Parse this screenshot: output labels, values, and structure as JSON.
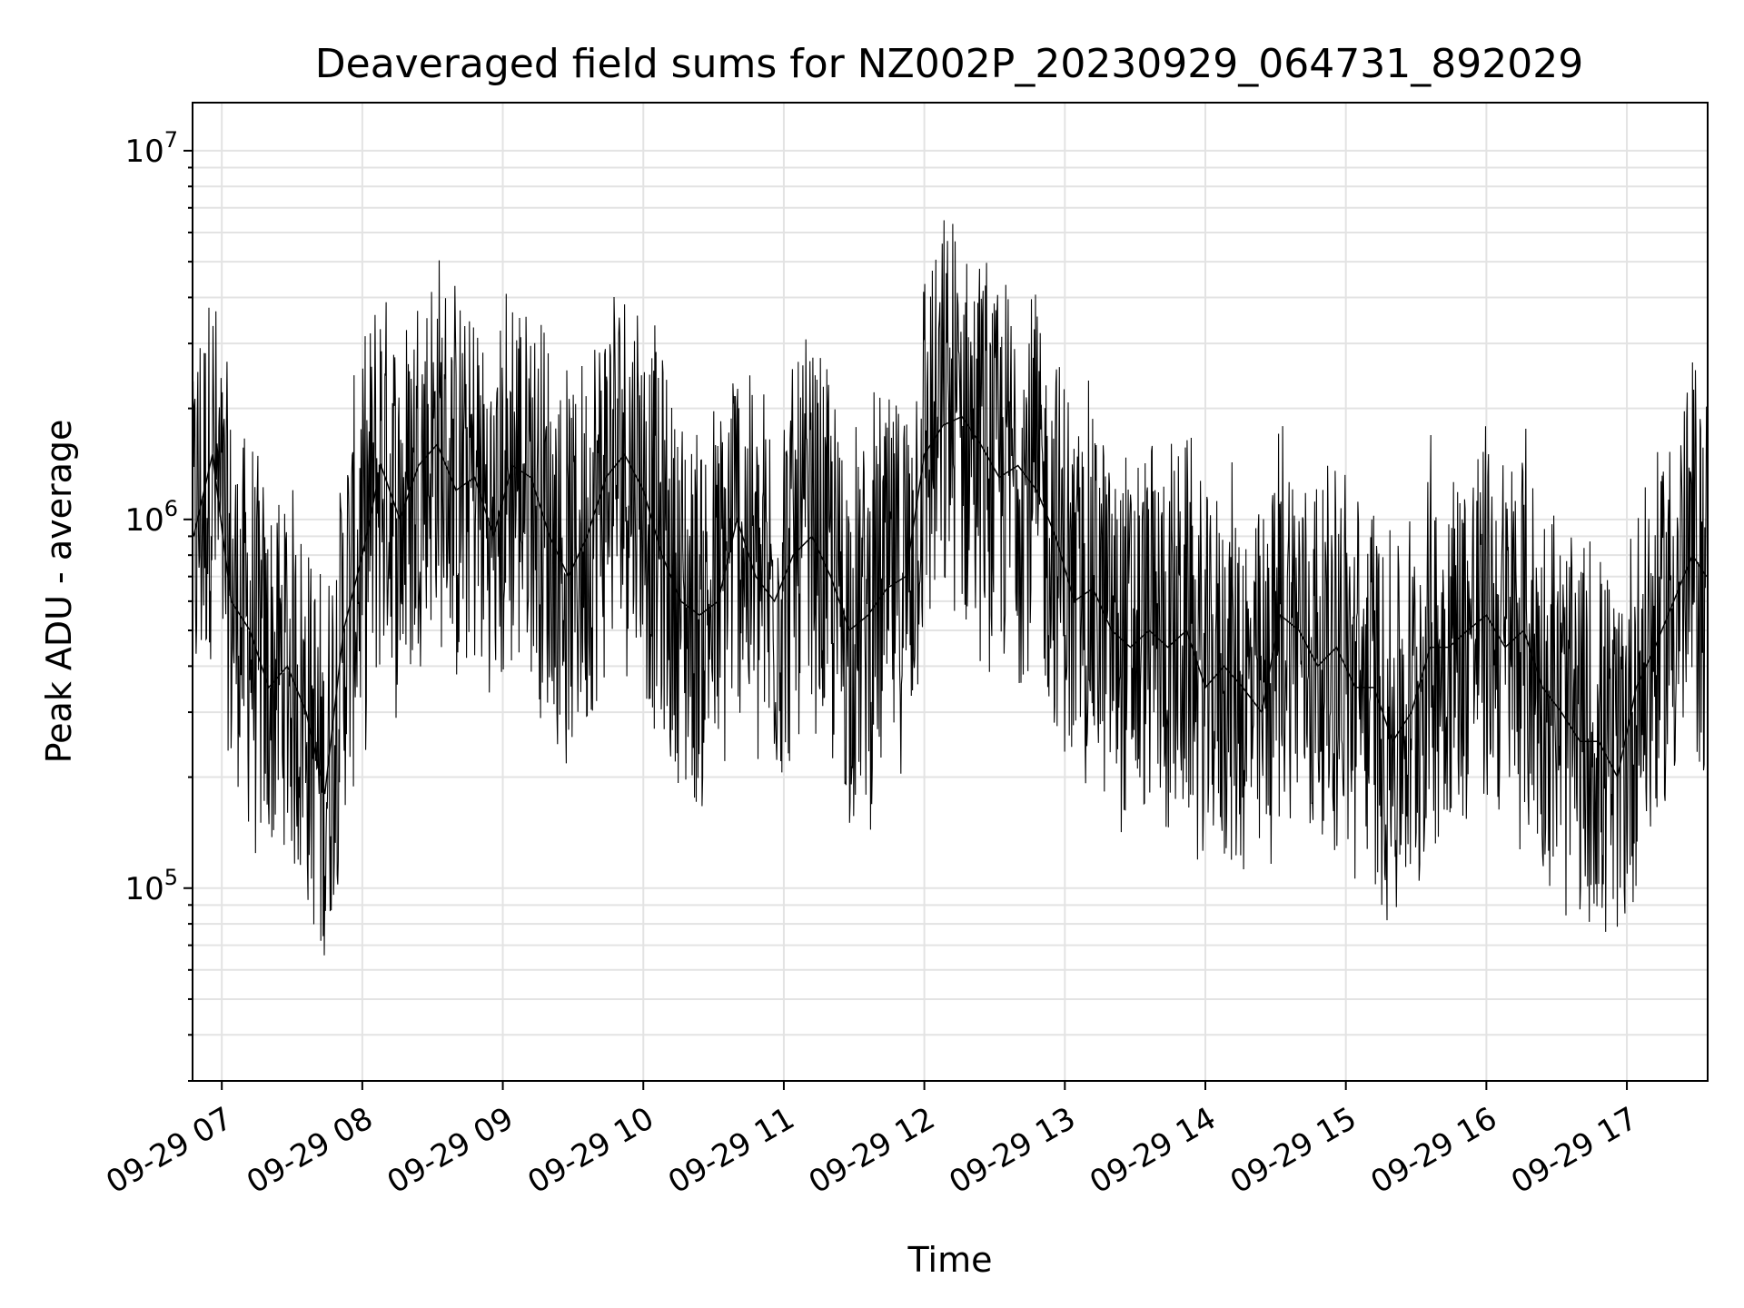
{
  "chart_data": {
    "type": "line",
    "title": "Deaveraged field sums for NZ002P_20230929_064731_892029",
    "xlabel": "Time",
    "ylabel": "Peak ADU - average",
    "yscale": "log",
    "ylim": [
      30000,
      13500000
    ],
    "xlim": [
      "2023-09-29 06:47:31",
      "2023-09-29 17:34:30"
    ],
    "x_ticks": [
      "09-29 07",
      "09-29 08",
      "09-29 09",
      "09-29 10",
      "09-29 11",
      "09-29 12",
      "09-29 13",
      "09-29 14",
      "09-29 15",
      "09-29 16",
      "09-29 17"
    ],
    "y_ticks": [
      {
        "value": 100000,
        "base": "10",
        "exp": "5"
      },
      {
        "value": 1000000,
        "base": "10",
        "exp": "6"
      },
      {
        "value": 10000000,
        "base": "10",
        "exp": "7"
      }
    ],
    "grid": true,
    "series": [
      {
        "color": "#000000",
        "x": [
          "2023-09-29 06:48",
          "2023-09-29 06:56",
          "2023-09-29 07:04",
          "2023-09-29 07:12",
          "2023-09-29 07:20",
          "2023-09-29 07:28",
          "2023-09-29 07:36",
          "2023-09-29 07:44",
          "2023-09-29 07:52",
          "2023-09-29 08:00",
          "2023-09-29 08:08",
          "2023-09-29 08:16",
          "2023-09-29 08:24",
          "2023-09-29 08:32",
          "2023-09-29 08:40",
          "2023-09-29 08:48",
          "2023-09-29 08:56",
          "2023-09-29 09:04",
          "2023-09-29 09:12",
          "2023-09-29 09:20",
          "2023-09-29 09:28",
          "2023-09-29 09:36",
          "2023-09-29 09:44",
          "2023-09-29 09:52",
          "2023-09-29 10:00",
          "2023-09-29 10:08",
          "2023-09-29 10:16",
          "2023-09-29 10:24",
          "2023-09-29 10:32",
          "2023-09-29 10:40",
          "2023-09-29 10:48",
          "2023-09-29 10:56",
          "2023-09-29 11:04",
          "2023-09-29 11:12",
          "2023-09-29 11:20",
          "2023-09-29 11:28",
          "2023-09-29 11:36",
          "2023-09-29 11:44",
          "2023-09-29 11:52",
          "2023-09-29 12:00",
          "2023-09-29 12:08",
          "2023-09-29 12:16",
          "2023-09-29 12:24",
          "2023-09-29 12:32",
          "2023-09-29 12:40",
          "2023-09-29 12:48",
          "2023-09-29 12:56",
          "2023-09-29 13:04",
          "2023-09-29 13:12",
          "2023-09-29 13:20",
          "2023-09-29 13:28",
          "2023-09-29 13:36",
          "2023-09-29 13:44",
          "2023-09-29 13:52",
          "2023-09-29 14:00",
          "2023-09-29 14:08",
          "2023-09-29 14:16",
          "2023-09-29 14:24",
          "2023-09-29 14:32",
          "2023-09-29 14:40",
          "2023-09-29 14:48",
          "2023-09-29 14:56",
          "2023-09-29 15:04",
          "2023-09-29 15:12",
          "2023-09-29 15:20",
          "2023-09-29 15:28",
          "2023-09-29 15:36",
          "2023-09-29 15:44",
          "2023-09-29 15:52",
          "2023-09-29 16:00",
          "2023-09-29 16:08",
          "2023-09-29 16:16",
          "2023-09-29 16:24",
          "2023-09-29 16:32",
          "2023-09-29 16:40",
          "2023-09-29 16:48",
          "2023-09-29 16:56",
          "2023-09-29 17:04",
          "2023-09-29 17:12",
          "2023-09-29 17:20",
          "2023-09-29 17:28",
          "2023-09-29 17:34"
        ],
        "y": [
          900000,
          1500000,
          600000,
          500000,
          350000,
          400000,
          300000,
          180000,
          500000,
          800000,
          1400000,
          1000000,
          1400000,
          1600000,
          1200000,
          1300000,
          900000,
          1400000,
          1300000,
          900000,
          700000,
          900000,
          1300000,
          1500000,
          1200000,
          800000,
          600000,
          550000,
          600000,
          1000000,
          700000,
          600000,
          800000,
          900000,
          700000,
          500000,
          550000,
          650000,
          700000,
          1500000,
          1800000,
          1900000,
          1600000,
          1300000,
          1400000,
          1200000,
          900000,
          600000,
          650000,
          500000,
          450000,
          500000,
          450000,
          500000,
          350000,
          400000,
          350000,
          300000,
          550000,
          500000,
          400000,
          450000,
          350000,
          350000,
          250000,
          300000,
          450000,
          450000,
          500000,
          550000,
          450000,
          500000,
          350000,
          300000,
          250000,
          250000,
          200000,
          350000,
          450000,
          600000,
          800000,
          700000
        ]
      }
    ]
  }
}
